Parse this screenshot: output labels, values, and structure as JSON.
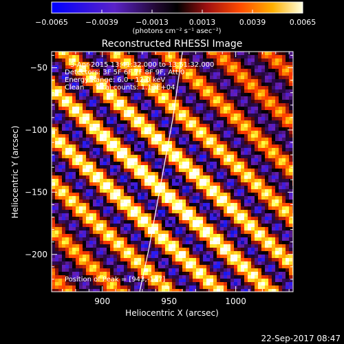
{
  "chart_data": {
    "type": "heatmap",
    "title": "Reconstructed RHESSI Image",
    "xlabel": "Heliocentric X (arcsec)",
    "ylabel": "Heliocentric Y (arcsec)",
    "xlim": [
      862,
      1043
    ],
    "ylim": [
      -230,
      -37
    ],
    "x_ticks": [
      900,
      950,
      1000
    ],
    "y_ticks": [
      -50,
      -100,
      -150,
      -200
    ],
    "colorbar": {
      "range": [
        -0.0065,
        0.0065
      ],
      "ticks": [
        -0.0065,
        -0.0039,
        -0.0013,
        0.0013,
        0.0039,
        0.0065
      ],
      "tick_labels": [
        "−0.0065",
        "−0.0039",
        "−0.0013",
        "0.0013",
        "0.0039",
        "0.0065"
      ],
      "unit": "(photons cm⁻² s⁻¹ asec⁻²)"
    },
    "annotations": [
      "3-Apr-2015 13:41:32.000 to 13:51:32.000",
      "Detectors: 3F 5F 6F 7F 8F 9F, Att 0",
      "Energy Range: 6.0 - 12.0 keV",
      "Clean     Total counts: 1.13E+04"
    ],
    "peak_label": "Position of Peak = [943,-147]",
    "peak": [
      943,
      -147
    ],
    "limb_curve": [
      [
        928,
        -230
      ],
      [
        935,
        -195
      ],
      [
        941,
        -160
      ],
      [
        947,
        -125
      ],
      [
        953,
        -90
      ],
      [
        960,
        -37
      ]
    ],
    "colors": {
      "colormap": [
        "#000000",
        "#1a1aff",
        "#6a1fb5",
        "#2c0a4a",
        "#000000",
        "#8a0f0f",
        "#ff3a00",
        "#ffa000",
        "#ffff40",
        "#ffffff"
      ]
    }
  },
  "footer": {
    "timestamp": "22-Sep-2017 08:47"
  }
}
